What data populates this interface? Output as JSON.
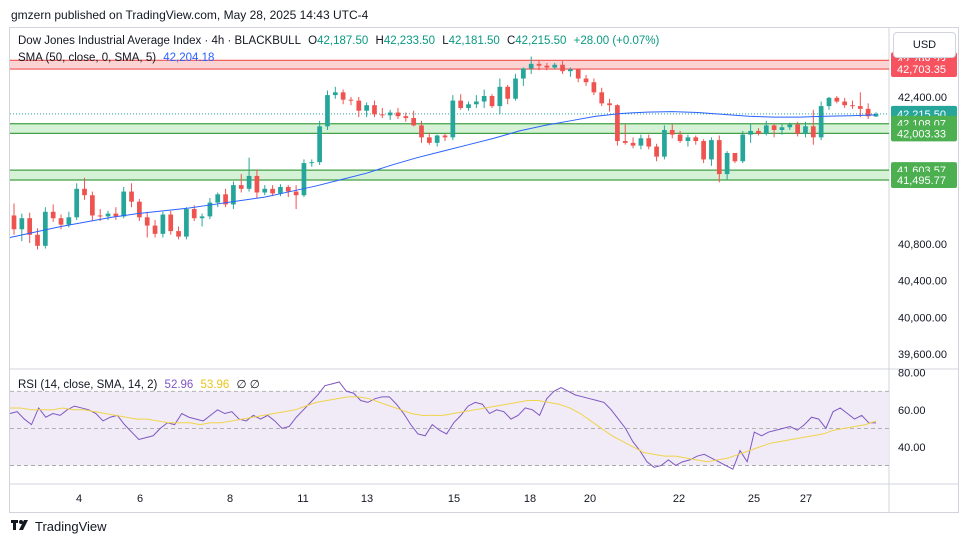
{
  "attribution": "gmzern published on TradingView.com, May 28, 2025 14:43 UTC-4",
  "currency_button": "USD",
  "brand": {
    "logo": "tradingview-logo-icon",
    "name": "TradingView"
  },
  "legend": {
    "symbol": "Dow Jones Industrial Average Index · 4h · BLACKBULL",
    "open_label": "O",
    "open": "42,187.50",
    "high_label": "H",
    "high": "42,233.50",
    "low_label": "L",
    "low": "42,181.50",
    "close_label": "C",
    "close": "42,215.50",
    "change": "+28.00 (+0.07%)",
    "sma_label": "SMA (50, close, 0, SMA, 5)",
    "sma_value": "42,204.18",
    "rsi_label": "RSI (14, close, SMA, 14, 2)",
    "rsi_value": "52.96",
    "rsi_sma_value": "53.96",
    "rsi_extra": "∅ ∅"
  },
  "colors": {
    "up": "#26a69a",
    "down": "#ef5350",
    "sma": "#2962ff",
    "rsi": "#7e57c2",
    "rsi_ma": "#f0d44a",
    "resistance_fill": "#fbd3d3",
    "support_fill": "#d6f2d6"
  },
  "chart_data": [
    {
      "type": "candlestick",
      "title": "Dow Jones Industrial Average Index · 4h · BLACKBULL",
      "x_tick_labels": [
        "4",
        "6",
        "8",
        "11",
        "13",
        "15",
        "18",
        "20",
        "22",
        "25",
        "27"
      ],
      "y_tick_labels": [
        "42,400.00",
        "40,800.00",
        "40,400.00",
        "40,000.00",
        "39,600.00"
      ],
      "ylim": [
        39450,
        43150
      ],
      "price_labels": [
        {
          "text": "42,798.23",
          "value": 42798.23,
          "style": "resistance"
        },
        {
          "text": "42,703.35",
          "value": 42703.35,
          "style": "resistance"
        },
        {
          "text": "42,215.50",
          "value": 42215.5,
          "style": "last"
        },
        {
          "text": "02:16:56",
          "value": 42080,
          "style": "countdown"
        },
        {
          "text": "42,108.07",
          "value": 42108.07,
          "style": "support"
        },
        {
          "text": "42,003.33",
          "value": 42003.33,
          "style": "support"
        },
        {
          "text": "41,603.57",
          "value": 41603.57,
          "style": "support"
        },
        {
          "text": "41,495.77",
          "value": 41495.77,
          "style": "support"
        }
      ],
      "zones": [
        {
          "type": "resistance",
          "from": 42703.35,
          "to": 42798.23
        },
        {
          "type": "support",
          "from": 42003.33,
          "to": 42108.07
        },
        {
          "type": "support",
          "from": 41495.77,
          "to": 41603.57
        }
      ],
      "last_price": 42215.5,
      "candles": [
        [
          41110,
          41240,
          40900,
          40960
        ],
        [
          40960,
          41130,
          40830,
          41080
        ],
        [
          41080,
          41140,
          40810,
          40900
        ],
        [
          40900,
          40970,
          40740,
          40780
        ],
        [
          40780,
          41200,
          40750,
          41150
        ],
        [
          41150,
          41230,
          41040,
          41080
        ],
        [
          41080,
          41120,
          40960,
          41010
        ],
        [
          41010,
          41150,
          40980,
          41090
        ],
        [
          41090,
          41460,
          41060,
          41400
        ],
        [
          41400,
          41520,
          41280,
          41330
        ],
        [
          41330,
          41370,
          41050,
          41110
        ],
        [
          41110,
          41180,
          41050,
          41100
        ],
        [
          41100,
          41160,
          41060,
          41130
        ],
        [
          41130,
          41200,
          41060,
          41100
        ],
        [
          41100,
          41420,
          41080,
          41370
        ],
        [
          41370,
          41460,
          41200,
          41260
        ],
        [
          41260,
          41290,
          41050,
          41090
        ],
        [
          41090,
          41150,
          40870,
          41000
        ],
        [
          41000,
          41060,
          40870,
          40910
        ],
        [
          40910,
          41150,
          40870,
          41120
        ],
        [
          41120,
          41160,
          40900,
          40940
        ],
        [
          40940,
          40990,
          40850,
          40880
        ],
        [
          40880,
          41200,
          40850,
          41180
        ],
        [
          41180,
          41220,
          41050,
          41080
        ],
        [
          41080,
          41130,
          40990,
          41100
        ],
        [
          41100,
          41300,
          41070,
          41250
        ],
        [
          41250,
          41360,
          41200,
          41340
        ],
        [
          41340,
          41400,
          41200,
          41230
        ],
        [
          41230,
          41480,
          41180,
          41440
        ],
        [
          41440,
          41560,
          41360,
          41400
        ],
        [
          41400,
          41740,
          41370,
          41540
        ],
        [
          41540,
          41610,
          41300,
          41360
        ],
        [
          41360,
          41440,
          41330,
          41400
        ],
        [
          41400,
          41440,
          41320,
          41350
        ],
        [
          41350,
          41450,
          41320,
          41420
        ],
        [
          41420,
          41440,
          41310,
          41370
        ],
        [
          41370,
          41440,
          41180,
          41330
        ],
        [
          41330,
          41720,
          41310,
          41680
        ],
        [
          41680,
          41720,
          41640,
          41690
        ],
        [
          41690,
          42140,
          41660,
          42080
        ],
        [
          42080,
          42470,
          42040,
          42420
        ],
        [
          42420,
          42510,
          42380,
          42450
        ],
        [
          42450,
          42480,
          42320,
          42370
        ],
        [
          42370,
          42400,
          42310,
          42360
        ],
        [
          42360,
          42400,
          42180,
          42250
        ],
        [
          42250,
          42340,
          42180,
          42310
        ],
        [
          42310,
          42360,
          42180,
          42210
        ],
        [
          42210,
          42280,
          42170,
          42200
        ],
        [
          42200,
          42260,
          42150,
          42230
        ],
        [
          42230,
          42280,
          42160,
          42190
        ],
        [
          42190,
          42230,
          42130,
          42170
        ],
        [
          42170,
          42250,
          42080,
          42090
        ],
        [
          42090,
          42140,
          41900,
          41960
        ],
        [
          41960,
          42010,
          41880,
          41900
        ],
        [
          41900,
          41990,
          41860,
          41980
        ],
        [
          41980,
          42000,
          41920,
          41960
        ],
        [
          41960,
          42420,
          41930,
          42360
        ],
        [
          42360,
          42430,
          42260,
          42280
        ],
        [
          42280,
          42350,
          42250,
          42320
        ],
        [
          42320,
          42420,
          42280,
          42350
        ],
        [
          42350,
          42480,
          42280,
          42410
        ],
        [
          42410,
          42430,
          42280,
          42300
        ],
        [
          42300,
          42600,
          42210,
          42510
        ],
        [
          42510,
          42530,
          42320,
          42380
        ],
        [
          42380,
          42650,
          42360,
          42600
        ],
        [
          42600,
          42720,
          42520,
          42710
        ],
        [
          42710,
          42840,
          42650,
          42760
        ],
        [
          42760,
          42800,
          42690,
          42740
        ],
        [
          42740,
          42770,
          42690,
          42720
        ],
        [
          42720,
          42770,
          42700,
          42750
        ],
        [
          42750,
          42790,
          42650,
          42680
        ],
        [
          42680,
          42720,
          42620,
          42700
        ],
        [
          42700,
          42710,
          42560,
          42600
        ],
        [
          42600,
          42640,
          42520,
          42560
        ],
        [
          42560,
          42600,
          42420,
          42450
        ],
        [
          42450,
          42500,
          42300,
          42330
        ],
        [
          42330,
          42380,
          42240,
          42310
        ],
        [
          42310,
          42320,
          41870,
          41920
        ],
        [
          41920,
          42100,
          41880,
          41900
        ],
        [
          41900,
          41960,
          41840,
          41870
        ],
        [
          41870,
          41990,
          41830,
          41950
        ],
        [
          41950,
          41990,
          41830,
          41860
        ],
        [
          41860,
          41890,
          41700,
          41750
        ],
        [
          41750,
          42090,
          41720,
          42040
        ],
        [
          42040,
          42100,
          41950,
          41990
        ],
        [
          41990,
          42030,
          41900,
          41920
        ],
        [
          41920,
          41990,
          41860,
          41960
        ],
        [
          41960,
          41980,
          41880,
          41920
        ],
        [
          41920,
          41940,
          41680,
          41720
        ],
        [
          41720,
          41960,
          41650,
          41930
        ],
        [
          41930,
          41980,
          41470,
          41560
        ],
        [
          41560,
          41810,
          41500,
          41790
        ],
        [
          41790,
          41790,
          41680,
          41700
        ],
        [
          41700,
          42030,
          41680,
          41990
        ],
        [
          41990,
          42110,
          41900,
          42030
        ],
        [
          42030,
          42060,
          41980,
          42000
        ],
        [
          42000,
          42140,
          41980,
          42090
        ],
        [
          42090,
          42110,
          41960,
          42040
        ],
        [
          42040,
          42110,
          41990,
          42070
        ],
        [
          42070,
          42120,
          42040,
          42100
        ],
        [
          42100,
          42130,
          41970,
          42000
        ],
        [
          42000,
          42130,
          41960,
          42080
        ],
        [
          42080,
          42260,
          41880,
          41960
        ],
        [
          41960,
          42350,
          41930,
          42300
        ],
        [
          42300,
          42400,
          42260,
          42390
        ],
        [
          42390,
          42410,
          42330,
          42350
        ],
        [
          42350,
          42390,
          42280,
          42310
        ],
        [
          42310,
          42360,
          42270,
          42300
        ],
        [
          42300,
          42450,
          42180,
          42270
        ],
        [
          42270,
          42330,
          42160,
          42190
        ],
        [
          42187.5,
          42233.5,
          42181.5,
          42215.5
        ]
      ],
      "sma_50": [
        40870,
        40930,
        40990,
        41040,
        41090,
        41130,
        41160,
        41190,
        41230,
        41270,
        41310,
        41370,
        41430,
        41500,
        41570,
        41660,
        41740,
        41810,
        41880,
        41950,
        42030,
        42090,
        42140,
        42190,
        42220,
        42235,
        42240,
        42230,
        42210,
        42190,
        42180,
        42180,
        42190,
        42195,
        42204.18
      ]
    },
    {
      "type": "line",
      "title": "RSI (14, close, SMA, 14, 2)",
      "y_tick_labels": [
        "80.00",
        "60.00",
        "40.00"
      ],
      "ylim": [
        20,
        82
      ],
      "levels": [
        70,
        50,
        30
      ],
      "rsi": [
        58,
        59,
        55,
        52,
        61,
        56,
        58,
        57,
        60,
        62,
        61,
        60,
        58,
        54,
        56,
        57,
        52,
        48,
        44,
        45,
        46,
        50,
        53,
        52,
        58,
        56,
        55,
        54,
        57,
        60,
        58,
        59,
        55,
        54,
        57,
        55,
        57,
        54,
        50,
        51,
        56,
        60,
        64,
        68,
        73,
        74,
        75,
        70,
        69,
        65,
        64,
        66,
        67,
        67,
        63,
        58,
        52,
        47,
        46,
        52,
        49,
        47,
        53,
        57,
        62,
        64,
        63,
        58,
        60,
        59,
        55,
        57,
        61,
        60,
        57,
        66,
        70,
        72,
        70,
        68,
        67,
        66,
        65,
        64,
        60,
        55,
        50,
        43,
        38,
        32,
        29,
        30,
        33,
        30,
        32,
        33,
        35,
        36,
        34,
        32,
        30,
        28,
        38,
        32,
        48,
        46,
        48,
        49,
        50,
        51,
        49,
        52,
        56,
        55,
        50,
        59,
        61,
        58,
        55,
        57,
        53,
        52.96
      ],
      "rsi_ma": [
        61,
        61,
        60,
        60,
        60,
        61,
        60,
        60,
        59,
        58,
        57,
        56,
        55,
        55,
        54,
        53,
        53,
        53,
        52,
        53,
        53,
        54,
        55,
        56,
        57,
        58,
        59,
        60,
        62,
        64,
        65,
        66,
        67,
        67,
        66,
        64,
        62,
        60,
        58,
        57,
        57,
        57,
        58,
        59,
        60,
        61,
        62,
        63,
        64,
        65,
        65,
        64,
        63,
        61,
        58,
        54,
        50,
        46,
        43,
        40,
        37,
        36,
        35,
        35,
        34,
        33,
        32,
        33,
        34,
        36,
        38,
        40,
        42,
        43,
        44,
        45,
        46,
        47,
        49,
        50,
        51,
        52,
        53.96
      ]
    }
  ]
}
